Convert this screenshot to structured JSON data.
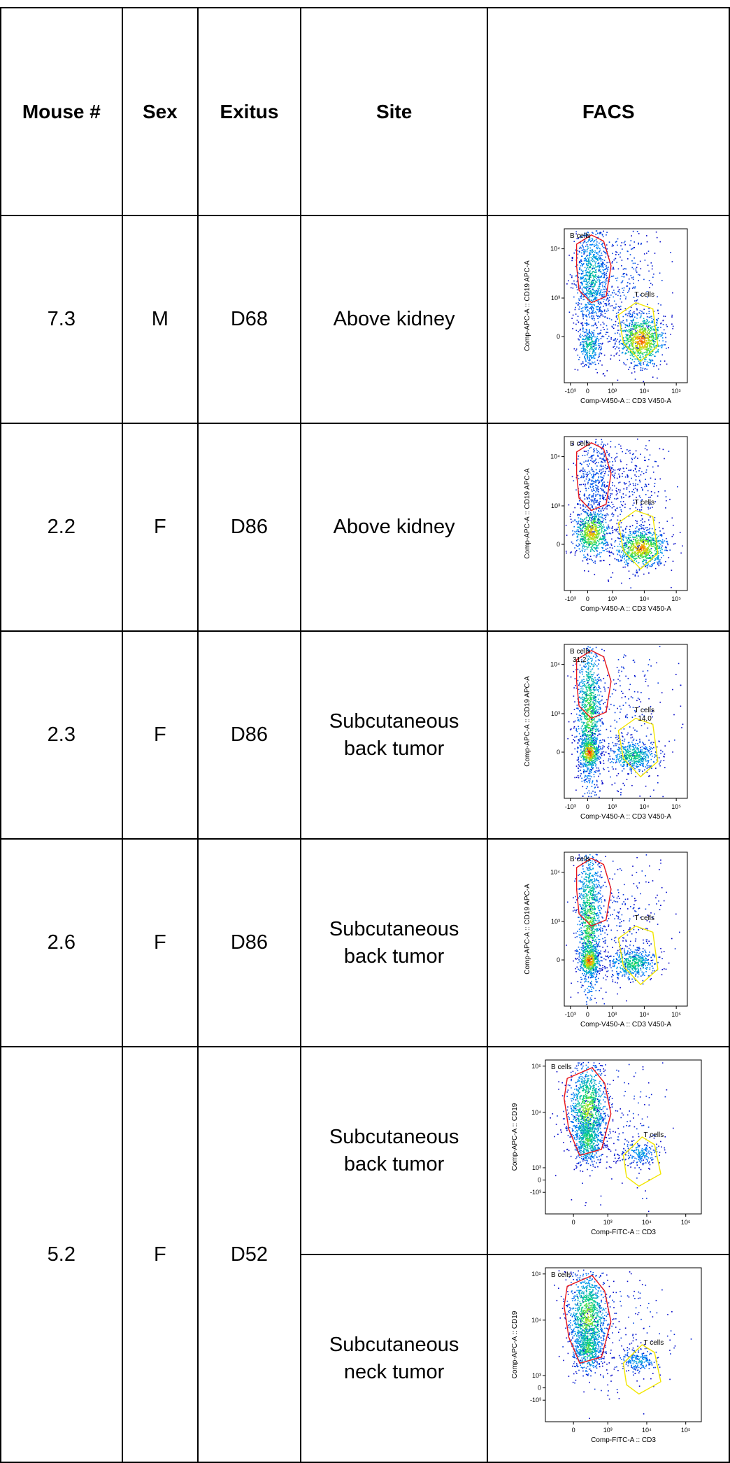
{
  "headers": [
    "Mouse #",
    "Sex",
    "Exitus",
    "Site",
    "FACS"
  ],
  "rows": [
    {
      "mouse": "7.3",
      "sex": "M",
      "exitus": "D68",
      "sites": [
        {
          "site": "Above kidney",
          "facs": {
            "x_label": "Comp-V450-A :: CD3 V450-A",
            "y_label": "Comp-APC-A :: CD19 APC-A",
            "x_ticks": [
              "-10³",
              "0",
              "10³",
              "10⁴",
              "10⁵"
            ],
            "y_ticks": [
              "10⁴",
              "10³",
              "0"
            ],
            "gate_b": "B cells",
            "gate_t": "T cells",
            "b_value": "",
            "t_value": ""
          }
        }
      ]
    },
    {
      "mouse": "2.2",
      "sex": "F",
      "exitus": "D86",
      "sites": [
        {
          "site": "Above kidney",
          "facs": {
            "x_label": "Comp-V450-A :: CD3 V450-A",
            "y_label": "Comp-APC-A :: CD19 APC-A",
            "x_ticks": [
              "-10³",
              "0",
              "10³",
              "10⁴",
              "10⁵"
            ],
            "y_ticks": [
              "10⁴",
              "10³",
              "0"
            ],
            "gate_b": "B cells",
            "gate_t": "T cells",
            "b_value": "",
            "t_value": ""
          }
        }
      ]
    },
    {
      "mouse": "2.3",
      "sex": "F",
      "exitus": "D86",
      "sites": [
        {
          "site": "Subcutaneous back tumor",
          "facs": {
            "x_label": "Comp-V450-A :: CD3 V450-A",
            "y_label": "Comp-APC-A :: CD19 APC-A",
            "x_ticks": [
              "-10³",
              "0",
              "10³",
              "10⁴",
              "10⁵"
            ],
            "y_ticks": [
              "10⁴",
              "10³",
              "0"
            ],
            "gate_b": "B cells",
            "gate_t": "T cells",
            "b_value": "31,2",
            "t_value": "14,0"
          }
        }
      ]
    },
    {
      "mouse": "2.6",
      "sex": "F",
      "exitus": "D86",
      "sites": [
        {
          "site": "Subcutaneous back tumor",
          "facs": {
            "x_label": "Comp-V450-A :: CD3 V450-A",
            "y_label": "Comp-APC-A :: CD19 APC-A",
            "x_ticks": [
              "-10³",
              "0",
              "10³",
              "10⁴",
              "10⁵"
            ],
            "y_ticks": [
              "10⁴",
              "10³",
              "0"
            ],
            "gate_b": "B cells",
            "gate_t": "T cells",
            "b_value": "",
            "t_value": ""
          }
        }
      ]
    },
    {
      "mouse": "5.2",
      "sex": "F",
      "exitus": "D52",
      "sites": [
        {
          "site": "Subcutaneous back tumor",
          "facs": {
            "x_label": "Comp-FITC-A :: CD3",
            "y_label": "Comp-APC-A :: CD19",
            "x_ticks": [
              "0",
              "10³",
              "10⁴",
              "10⁵"
            ],
            "y_ticks": [
              "10⁵",
              "10⁴",
              "10³",
              "0",
              "-10³"
            ],
            "gate_b": "B cells",
            "gate_t": "T cells",
            "b_value": "",
            "t_value": ""
          }
        },
        {
          "site": "Subcutaneous neck tumor",
          "facs": {
            "x_label": "Comp-FITC-A :: CD3",
            "y_label": "Comp-APC-A :: CD19",
            "x_ticks": [
              "0",
              "10³",
              "10⁴",
              "10⁵"
            ],
            "y_ticks": [
              "10⁵",
              "10⁴",
              "10³",
              "0",
              "-10³"
            ],
            "gate_b": "B cells",
            "gate_t": "T cells",
            "b_value": "",
            "t_value": ""
          }
        }
      ]
    }
  ]
}
